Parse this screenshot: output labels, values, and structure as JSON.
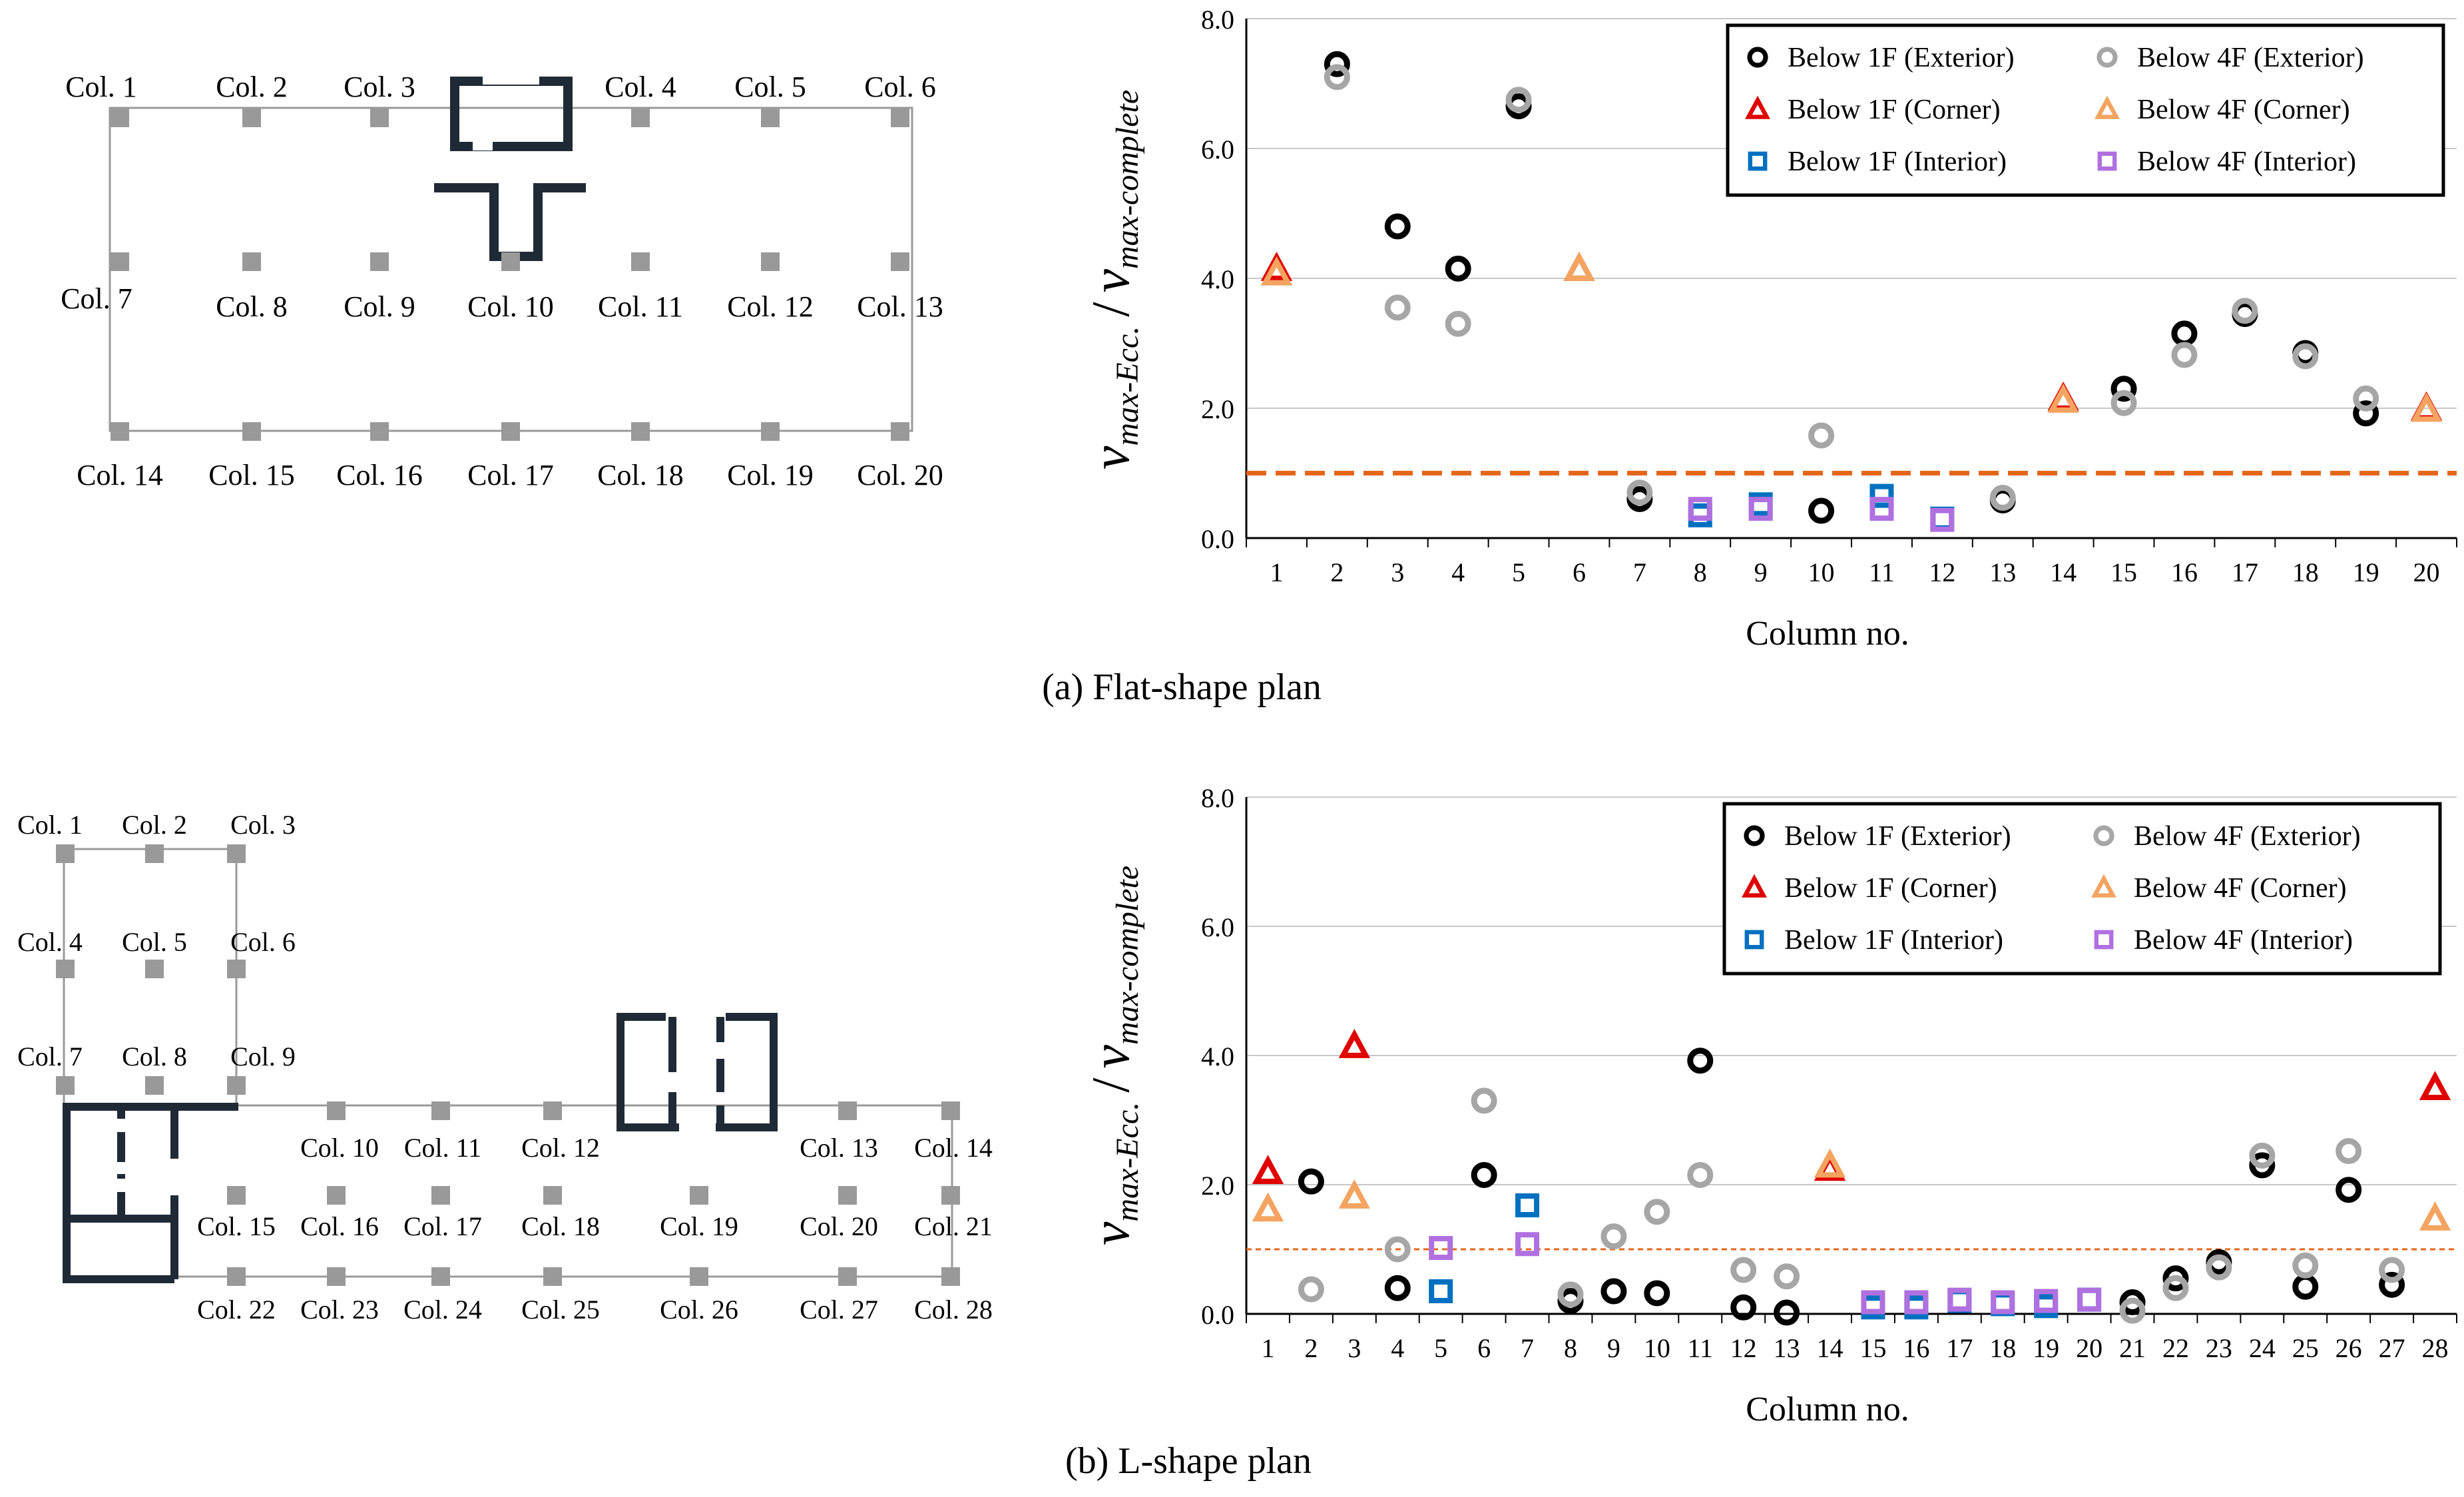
{
  "colors": {
    "ext1F": "#000000",
    "ext4F": "#a6a6a6",
    "corner1F": "#e00000",
    "corner4F": "#f4a460",
    "int1F": "#0070c0",
    "int4F": "#b070e0",
    "refline": "#e4661a",
    "wall": "#1f2a36",
    "column": "#999999"
  },
  "captions": {
    "a": "(a) Flat-shape plan",
    "b": "(b) L-shape plan"
  },
  "plan_a": {
    "labels": [
      "Col. 1",
      "Col. 2",
      "Col. 3",
      "Col. 4",
      "Col. 5",
      "Col. 6",
      "Col. 7",
      "Col. 8",
      "Col. 9",
      "Col. 10",
      "Col. 11",
      "Col. 12",
      "Col. 13",
      "Col. 14",
      "Col. 15",
      "Col. 16",
      "Col. 17",
      "Col. 18",
      "Col. 19",
      "Col. 20"
    ]
  },
  "plan_b": {
    "labels": [
      "Col. 1",
      "Col. 2",
      "Col. 3",
      "Col. 4",
      "Col. 5",
      "Col. 6",
      "Col. 7",
      "Col. 8",
      "Col. 9",
      "Col. 10",
      "Col. 11",
      "Col. 12",
      "Col. 13",
      "Col. 14",
      "Col. 15",
      "Col. 16",
      "Col. 17",
      "Col. 18",
      "Col. 19",
      "Col. 20",
      "Col. 21",
      "Col. 22",
      "Col. 23",
      "Col. 24",
      "Col. 25",
      "Col. 26",
      "Col. 27",
      "Col. 28"
    ]
  },
  "chart_data": [
    {
      "type": "scatter",
      "title": "(a) Flat-shape plan",
      "xlabel": "Column no.",
      "ylabel_main": "v",
      "ylabel_sub_num": "max-Ecc.",
      "ylabel_slash": "/",
      "ylabel_sub_den": "max-complete",
      "ylim": [
        0,
        8
      ],
      "yticks": [
        "0.0",
        "2.0",
        "4.0",
        "6.0",
        "8.0"
      ],
      "ytick_values": [
        0,
        2,
        4,
        6,
        8
      ],
      "categories": [
        "1",
        "2",
        "3",
        "4",
        "5",
        "6",
        "7",
        "8",
        "9",
        "10",
        "11",
        "12",
        "13",
        "14",
        "15",
        "16",
        "17",
        "18",
        "19",
        "20"
      ],
      "reference_line": 1.0,
      "legend": [
        "Below 1F (Exterior)",
        "Below 4F (Exterior)",
        "Below 1F (Corner)",
        "Below 4F (Corner)",
        "Below 1F (Interior)",
        "Below 4F (Interior)"
      ],
      "series": [
        {
          "name": "Below 1F (Exterior)",
          "marker": "circle",
          "color": "ext1F",
          "points": [
            [
              2,
              7.3
            ],
            [
              3,
              4.8
            ],
            [
              4,
              4.15
            ],
            [
              5,
              6.65
            ],
            [
              7,
              0.6
            ],
            [
              10,
              0.42
            ],
            [
              13,
              0.58
            ],
            [
              15,
              2.3
            ],
            [
              16,
              3.15
            ],
            [
              17,
              3.45
            ],
            [
              18,
              2.85
            ],
            [
              19,
              1.92
            ]
          ]
        },
        {
          "name": "Below 4F (Exterior)",
          "marker": "circle",
          "color": "ext4F",
          "points": [
            [
              2,
              7.1
            ],
            [
              3,
              3.55
            ],
            [
              4,
              3.3
            ],
            [
              5,
              6.75
            ],
            [
              7,
              0.7
            ],
            [
              10,
              1.58
            ],
            [
              13,
              0.62
            ],
            [
              15,
              2.08
            ],
            [
              16,
              2.82
            ],
            [
              17,
              3.5
            ],
            [
              18,
              2.8
            ],
            [
              19,
              2.15
            ]
          ]
        },
        {
          "name": "Below 1F (Corner)",
          "marker": "triangle",
          "color": "corner1F",
          "points": [
            [
              1,
              4.15
            ],
            [
              6,
              4.15
            ],
            [
              14,
              2.15
            ],
            [
              20,
              2.0
            ]
          ]
        },
        {
          "name": "Below 4F (Corner)",
          "marker": "triangle",
          "color": "corner4F",
          "points": [
            [
              1,
              4.08
            ],
            [
              6,
              4.15
            ],
            [
              14,
              2.12
            ],
            [
              20,
              1.98
            ]
          ]
        },
        {
          "name": "Below 1F (Interior)",
          "marker": "square",
          "color": "int1F",
          "points": [
            [
              8,
              0.35
            ],
            [
              9,
              0.52
            ],
            [
              11,
              0.65
            ],
            [
              12,
              0.3
            ]
          ]
        },
        {
          "name": "Below 4F (Interior)",
          "marker": "square",
          "color": "int4F",
          "points": [
            [
              8,
              0.45
            ],
            [
              9,
              0.45
            ],
            [
              11,
              0.45
            ],
            [
              12,
              0.28
            ]
          ]
        }
      ]
    },
    {
      "type": "scatter",
      "title": "(b) L-shape plan",
      "xlabel": "Column no.",
      "ylabel_main": "v",
      "ylabel_sub_num": "max-Ecc.",
      "ylabel_slash": "/",
      "ylabel_sub_den": "max-complete",
      "ylim": [
        0,
        8
      ],
      "yticks": [
        "0.0",
        "2.0",
        "4.0",
        "6.0",
        "8.0"
      ],
      "ytick_values": [
        0,
        2,
        4,
        6,
        8
      ],
      "categories": [
        "1",
        "2",
        "3",
        "4",
        "5",
        "6",
        "7",
        "8",
        "9",
        "10",
        "11",
        "12",
        "13",
        "14",
        "15",
        "16",
        "17",
        "18",
        "19",
        "20",
        "21",
        "22",
        "23",
        "24",
        "25",
        "26",
        "27",
        "28"
      ],
      "reference_line": 1.0,
      "legend": [
        "Below 1F (Exterior)",
        "Below 4F (Exterior)",
        "Below 1F (Corner)",
        "Below 4F (Corner)",
        "Below 1F (Interior)",
        "Below 4F (Interior)"
      ],
      "series": [
        {
          "name": "Below 1F (Exterior)",
          "marker": "circle",
          "color": "ext1F",
          "points": [
            [
              2,
              2.05
            ],
            [
              4,
              0.4
            ],
            [
              6,
              2.15
            ],
            [
              8,
              0.2
            ],
            [
              9,
              0.35
            ],
            [
              10,
              0.32
            ],
            [
              11,
              3.92
            ],
            [
              12,
              0.1
            ],
            [
              13,
              0.02
            ],
            [
              21,
              0.18
            ],
            [
              22,
              0.55
            ],
            [
              23,
              0.8
            ],
            [
              24,
              2.3
            ],
            [
              25,
              0.42
            ],
            [
              26,
              1.92
            ],
            [
              27,
              0.45
            ]
          ]
        },
        {
          "name": "Below 4F (Exterior)",
          "marker": "circle",
          "color": "ext4F",
          "points": [
            [
              2,
              0.38
            ],
            [
              4,
              1.0
            ],
            [
              6,
              3.3
            ],
            [
              8,
              0.3
            ],
            [
              9,
              1.2
            ],
            [
              10,
              1.58
            ],
            [
              11,
              2.15
            ],
            [
              12,
              0.68
            ],
            [
              13,
              0.58
            ],
            [
              21,
              0.05
            ],
            [
              22,
              0.4
            ],
            [
              23,
              0.72
            ],
            [
              24,
              2.45
            ],
            [
              25,
              0.75
            ],
            [
              26,
              2.52
            ],
            [
              27,
              0.68
            ]
          ]
        },
        {
          "name": "Below 1F (Corner)",
          "marker": "triangle",
          "color": "corner1F",
          "points": [
            [
              1,
              2.2
            ],
            [
              3,
              4.15
            ],
            [
              14,
              2.25
            ],
            [
              28,
              3.5
            ]
          ]
        },
        {
          "name": "Below 4F (Corner)",
          "marker": "triangle",
          "color": "corner4F",
          "points": [
            [
              1,
              1.62
            ],
            [
              3,
              1.82
            ],
            [
              14,
              2.3
            ],
            [
              28,
              1.48
            ]
          ]
        },
        {
          "name": "Below 1F (Interior)",
          "marker": "square",
          "color": "int1F",
          "points": [
            [
              5,
              0.35
            ],
            [
              7,
              1.68
            ],
            [
              15,
              0.1
            ],
            [
              16,
              0.1
            ],
            [
              17,
              0.2
            ],
            [
              18,
              0.15
            ],
            [
              19,
              0.12
            ],
            [
              20,
              0.22
            ]
          ]
        },
        {
          "name": "Below 4F (Interior)",
          "marker": "square",
          "color": "int4F",
          "points": [
            [
              5,
              1.02
            ],
            [
              7,
              1.08
            ],
            [
              15,
              0.18
            ],
            [
              16,
              0.18
            ],
            [
              17,
              0.22
            ],
            [
              18,
              0.18
            ],
            [
              19,
              0.2
            ],
            [
              20,
              0.22
            ]
          ]
        }
      ]
    }
  ]
}
